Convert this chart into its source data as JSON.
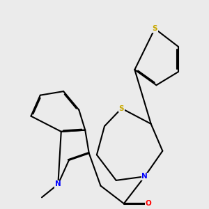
{
  "background_color": "#ebebeb",
  "bond_color": "#000000",
  "atom_colors": {
    "S": "#c8a800",
    "N": "#0000ff",
    "O": "#ff0000"
  },
  "line_width": 1.5,
  "figsize": [
    3.0,
    3.0
  ],
  "dpi": 100
}
